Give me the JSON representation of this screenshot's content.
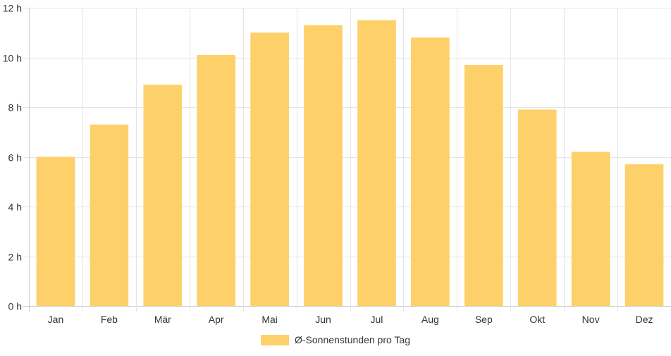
{
  "chart_data": {
    "type": "bar",
    "categories": [
      "Jan",
      "Feb",
      "Mär",
      "Apr",
      "Mai",
      "Jun",
      "Jul",
      "Aug",
      "Sep",
      "Okt",
      "Nov",
      "Dez"
    ],
    "series": [
      {
        "name": "Ø-Sonnenstunden pro Tag",
        "values": [
          6.0,
          7.3,
          8.9,
          10.1,
          11.0,
          11.3,
          11.5,
          10.8,
          9.7,
          7.9,
          6.2,
          5.7
        ],
        "color": "#fdd069"
      }
    ],
    "title": "",
    "xlabel": "",
    "ylabel": "",
    "ylim": [
      0,
      12
    ],
    "yticks": [
      0,
      2,
      4,
      6,
      8,
      10,
      12
    ],
    "yunit": "h",
    "grid": true,
    "legend_position": "bottom-center"
  }
}
